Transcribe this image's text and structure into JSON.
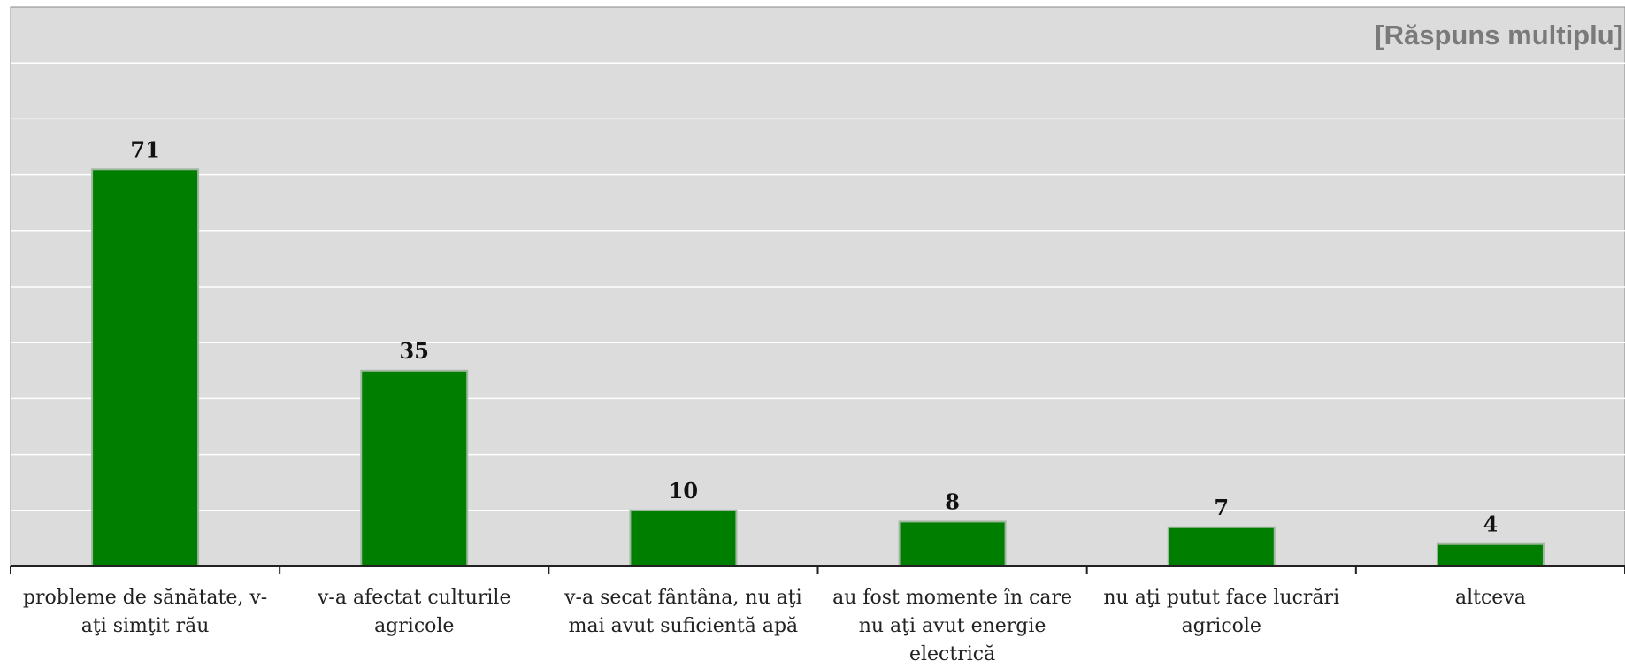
{
  "note": "[Răspuns multiplu]",
  "chart_data": {
    "type": "bar",
    "categories": [
      "probleme de sănătate, v-aţi simţit rău",
      "v-a afectat culturile agricole",
      "v-a secat fântâna, nu aţi mai avut suficientă apă",
      "au fost momente în care nu aţi avut energie electrică",
      "nu aţi putut face lucrări agricole",
      "altceva"
    ],
    "values": [
      71,
      35,
      10,
      8,
      7,
      4
    ],
    "data_labels": [
      "71",
      "35",
      "10",
      "8",
      "7",
      "4"
    ],
    "ylim": [
      0,
      100
    ],
    "grid": true,
    "colors": {
      "bar": "#007e00",
      "bar_edge": "#a0b8a0",
      "plot_bg": "#dcdcdc",
      "grid": "#ffffff",
      "axis": "#222222",
      "note": "#7a7a7a"
    }
  }
}
